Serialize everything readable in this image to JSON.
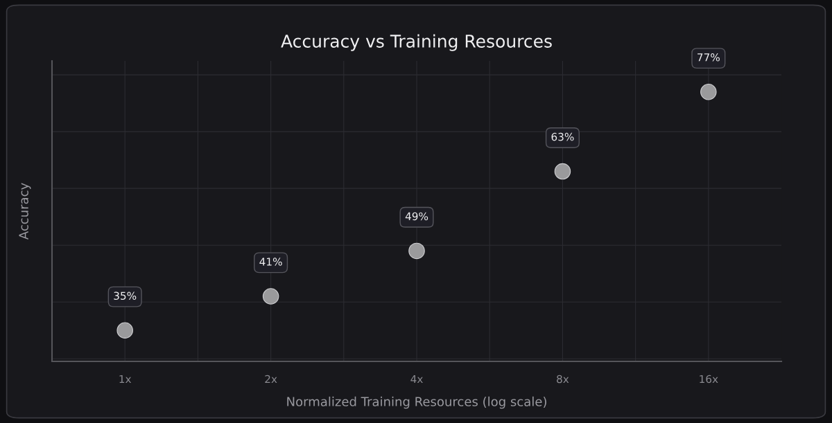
{
  "chart_data": {
    "type": "scatter",
    "title": "Accuracy vs Training Resources",
    "xlabel": "Normalized Training Resources (log scale)",
    "ylabel": "Accuracy",
    "categories": [
      "1x",
      "2x",
      "4x",
      "8x",
      "16x"
    ],
    "series": [
      {
        "color": "#9a9a9c",
        "values": [
          35,
          41,
          49,
          63,
          77
        ],
        "value_labels": [
          "35%",
          "41%",
          "49%",
          "63%",
          "77%"
        ]
      }
    ],
    "marker": "circle",
    "grid": true,
    "legend": false,
    "tick_labels": "x"
  }
}
